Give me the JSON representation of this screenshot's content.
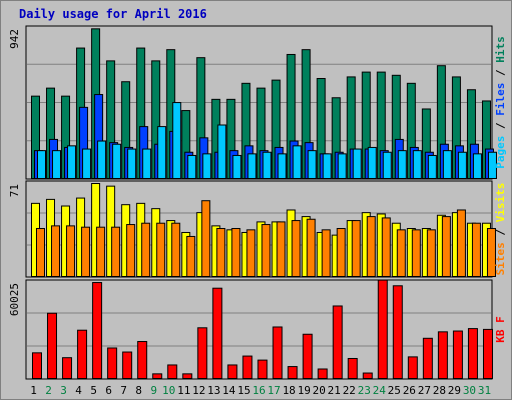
{
  "title": "Daily usage for April 2016",
  "colors": {
    "background": "#c0c0c0",
    "hits": "#00805c",
    "files": "#0040ff",
    "pages": "#00c8ff",
    "visits": "#ffff00",
    "sites": "#ff8000",
    "kbytes": "#ff0000",
    "weekday_label": "#000000",
    "weekend_label": "#008040",
    "gridline": "#808080"
  },
  "chart_data": [
    {
      "type": "bar",
      "name": "hits-files-pages",
      "ymax_label": "942",
      "ylim": [
        0,
        942
      ],
      "side_label": {
        "parts": [
          "Pages",
          "Files",
          "Hits"
        ],
        "separator": " / "
      },
      "categories": [
        "1",
        "2",
        "3",
        "4",
        "5",
        "6",
        "7",
        "8",
        "9",
        "10",
        "11",
        "12",
        "13",
        "14",
        "15",
        "16",
        "17",
        "18",
        "19",
        "20",
        "21",
        "22",
        "23",
        "24",
        "25",
        "26",
        "27",
        "28",
        "29",
        "30",
        "31"
      ],
      "series": [
        {
          "name": "Hits",
          "values": [
            520,
            570,
            520,
            820,
            940,
            740,
            610,
            820,
            740,
            810,
            430,
            760,
            500,
            500,
            600,
            570,
            620,
            780,
            810,
            630,
            510,
            640,
            670,
            670,
            650,
            600,
            440,
            710,
            640,
            560,
            490
          ]
        },
        {
          "name": "Files",
          "values": [
            180,
            250,
            200,
            450,
            530,
            230,
            200,
            330,
            220,
            300,
            170,
            260,
            170,
            180,
            210,
            180,
            200,
            240,
            230,
            160,
            170,
            190,
            190,
            180,
            250,
            200,
            170,
            220,
            210,
            220,
            190
          ]
        },
        {
          "name": "Pages",
          "values": [
            180,
            180,
            210,
            190,
            240,
            220,
            190,
            190,
            330,
            480,
            150,
            160,
            340,
            150,
            160,
            170,
            160,
            210,
            180,
            160,
            160,
            190,
            200,
            170,
            180,
            180,
            150,
            180,
            170,
            160,
            170
          ]
        }
      ]
    },
    {
      "type": "bar",
      "name": "visits-sites",
      "ymax_label": "71",
      "ylim": [
        0,
        71
      ],
      "side_label": {
        "parts": [
          "Sites",
          "Visits"
        ],
        "separator": " / "
      },
      "categories": [
        "1",
        "2",
        "3",
        "4",
        "5",
        "6",
        "7",
        "8",
        "9",
        "10",
        "11",
        "12",
        "13",
        "14",
        "15",
        "16",
        "17",
        "18",
        "19",
        "20",
        "21",
        "22",
        "23",
        "24",
        "25",
        "26",
        "27",
        "28",
        "29",
        "30",
        "31"
      ],
      "series": [
        {
          "name": "Visits",
          "values": [
            56,
            59,
            54,
            60,
            71,
            69,
            55,
            56,
            52,
            43,
            34,
            49,
            39,
            36,
            34,
            42,
            42,
            51,
            46,
            34,
            32,
            43,
            49,
            48,
            41,
            37,
            37,
            47,
            49,
            41,
            41
          ]
        },
        {
          "name": "Sites",
          "values": [
            37,
            39,
            39,
            38,
            38,
            38,
            40,
            41,
            41,
            41,
            31,
            58,
            37,
            37,
            36,
            40,
            42,
            43,
            44,
            36,
            37,
            43,
            46,
            45,
            36,
            36,
            36,
            46,
            51,
            41,
            37
          ]
        }
      ]
    },
    {
      "type": "bar",
      "name": "kbytes",
      "ymax_label": "60025",
      "ylim": [
        0,
        60025
      ],
      "side_label": {
        "parts": [
          "KB F"
        ],
        "separator": ""
      },
      "categories": [
        "1",
        "2",
        "3",
        "4",
        "5",
        "6",
        "7",
        "8",
        "9",
        "10",
        "11",
        "12",
        "13",
        "14",
        "15",
        "16",
        "17",
        "18",
        "19",
        "20",
        "21",
        "22",
        "23",
        "24",
        "25",
        "26",
        "27",
        "28",
        "29",
        "30",
        "31"
      ],
      "series": [
        {
          "name": "KB F",
          "values": [
            16500,
            41000,
            13500,
            30500,
            60000,
            19500,
            17000,
            23500,
            3500,
            9000,
            3500,
            32000,
            56500,
            9000,
            14500,
            12000,
            32500,
            8000,
            28000,
            6500,
            45500,
            13000,
            4000,
            61500,
            58000,
            14000,
            25500,
            29500,
            30000,
            31500,
            31000
          ]
        }
      ]
    }
  ]
}
